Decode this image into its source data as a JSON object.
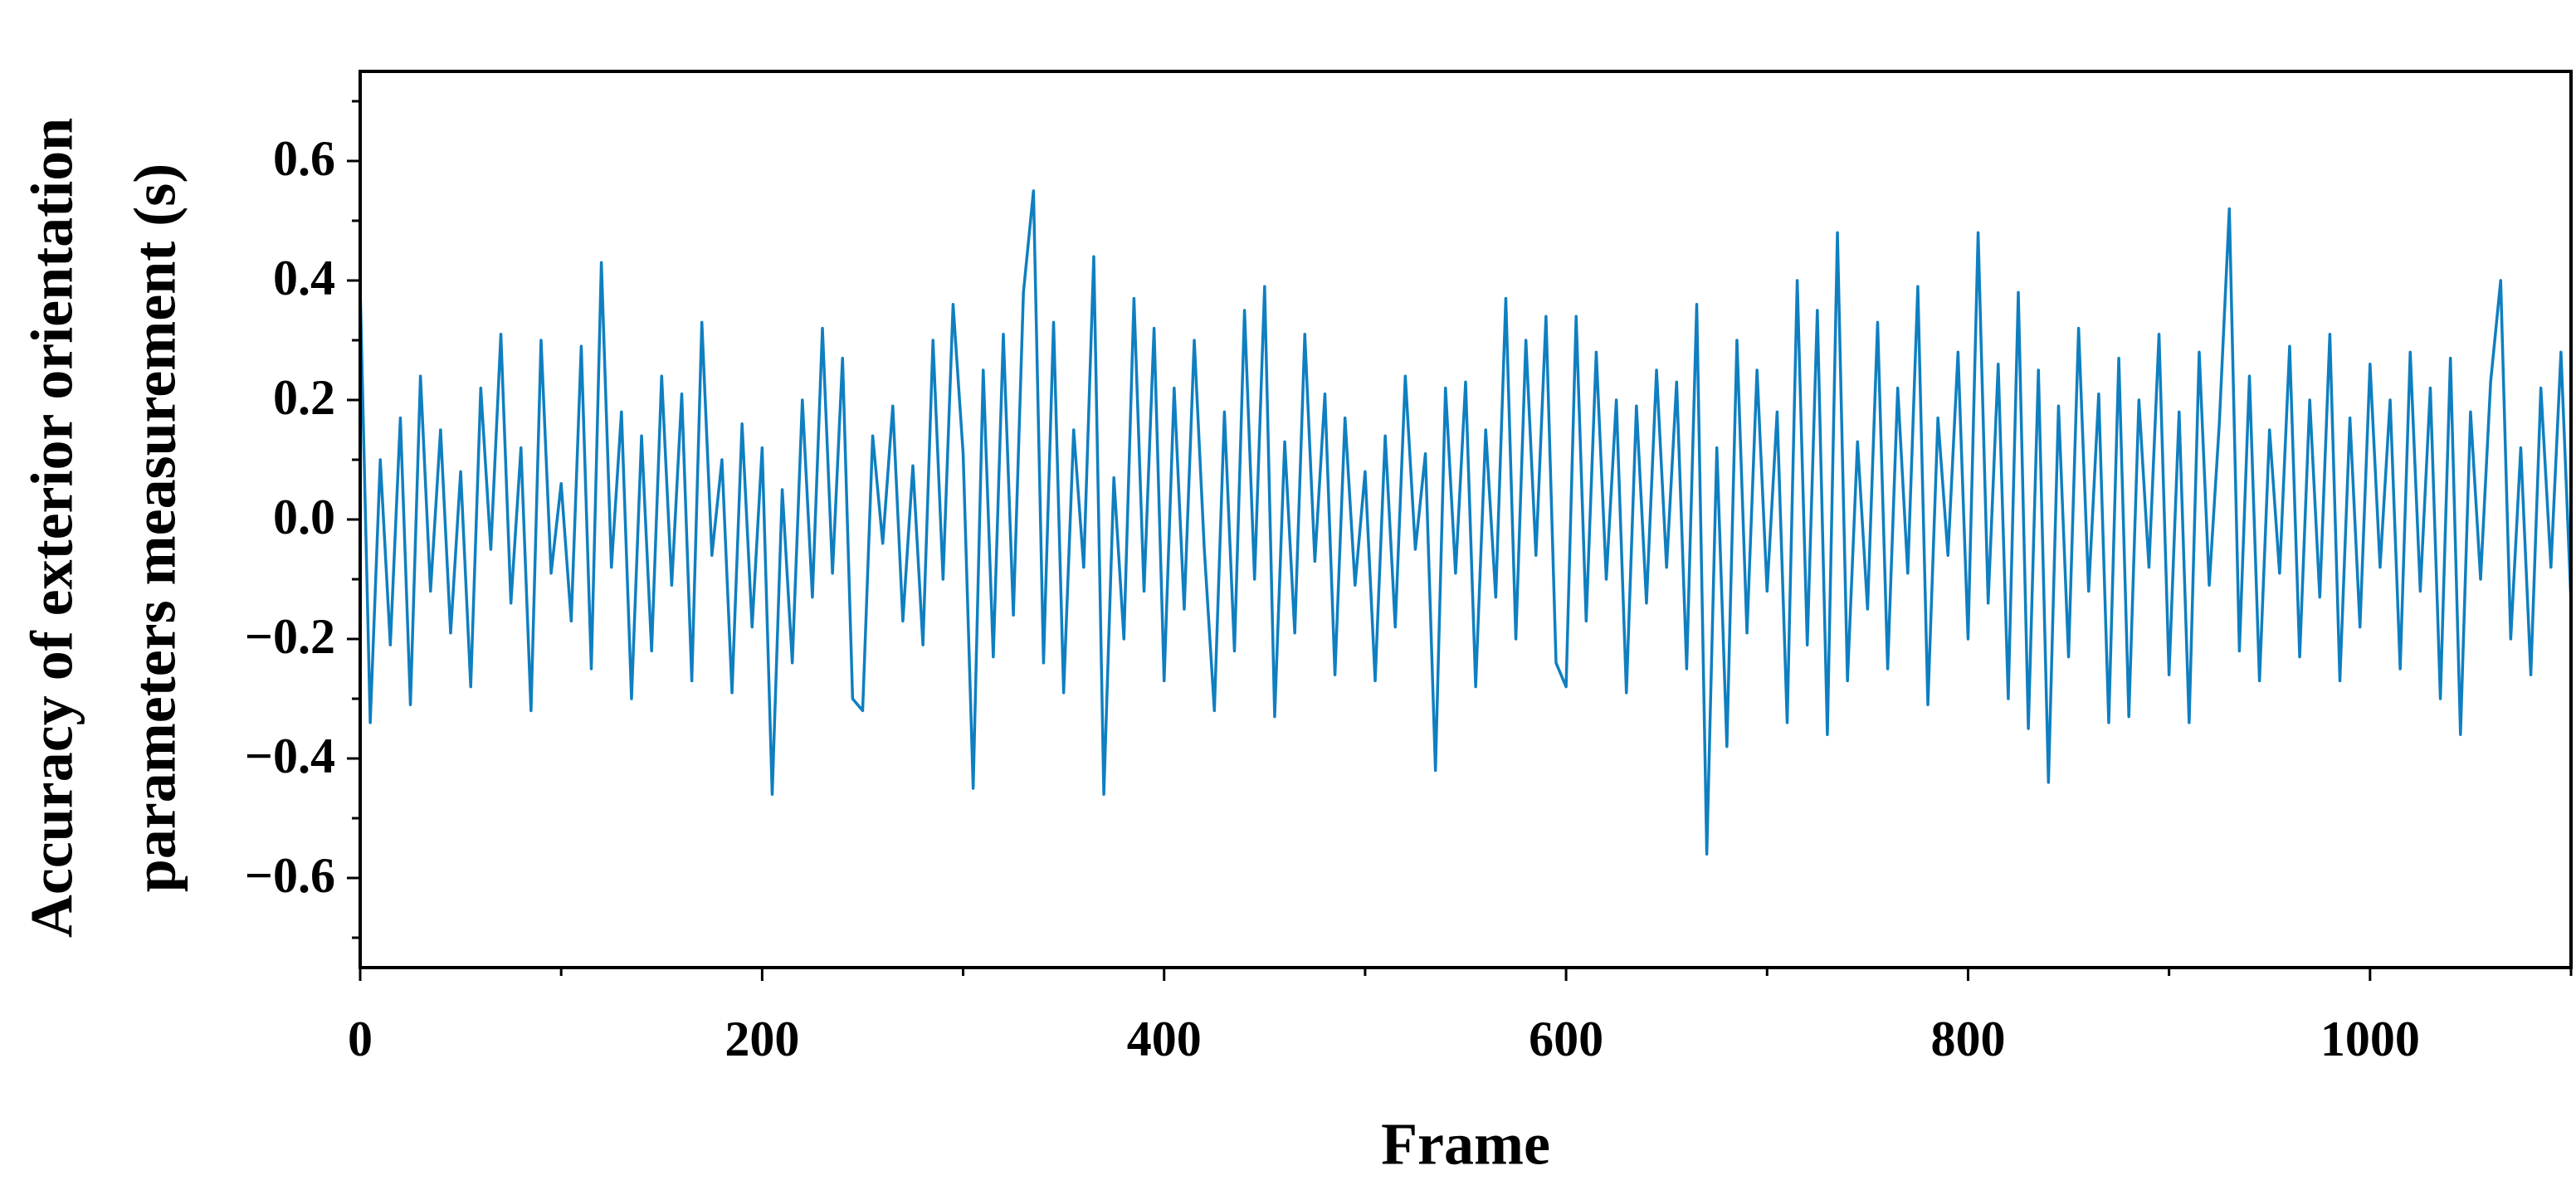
{
  "chart_data": {
    "type": "line",
    "xlabel": "Frame",
    "ylabel": [
      "Accuracy of exterior orientation",
      "parameters measurement (s)"
    ],
    "xlim": [
      0,
      1100
    ],
    "ylim": [
      -0.75,
      0.75
    ],
    "xticks": [
      0,
      200,
      400,
      600,
      800,
      1000
    ],
    "xminorticks": [
      100,
      300,
      500,
      700,
      900,
      1100
    ],
    "yticks": [
      {
        "value": -0.6,
        "label": "−0.6"
      },
      {
        "value": -0.4,
        "label": "−0.4"
      },
      {
        "value": -0.2,
        "label": "−0.2"
      },
      {
        "value": 0,
        "label": "0.0"
      },
      {
        "value": 0.2,
        "label": "0.2"
      },
      {
        "value": 0.4,
        "label": "0.4"
      },
      {
        "value": 0.6,
        "label": "0.6"
      }
    ],
    "yminorticks": [
      -0.7,
      -0.5,
      -0.3,
      -0.1,
      0.1,
      0.3,
      0.5,
      0.7
    ],
    "grid": false,
    "x": [
      0,
      5,
      10,
      15,
      20,
      25,
      30,
      35,
      40,
      45,
      50,
      55,
      60,
      65,
      70,
      75,
      80,
      85,
      90,
      95,
      100,
      105,
      110,
      115,
      120,
      125,
      130,
      135,
      140,
      145,
      150,
      155,
      160,
      165,
      170,
      175,
      180,
      185,
      190,
      195,
      200,
      205,
      210,
      215,
      220,
      225,
      230,
      235,
      240,
      245,
      250,
      255,
      260,
      265,
      270,
      275,
      280,
      285,
      290,
      295,
      300,
      305,
      310,
      315,
      320,
      325,
      330,
      335,
      340,
      345,
      350,
      355,
      360,
      365,
      370,
      375,
      380,
      385,
      390,
      395,
      400,
      405,
      410,
      415,
      420,
      425,
      430,
      435,
      440,
      445,
      450,
      455,
      460,
      465,
      470,
      475,
      480,
      485,
      490,
      495,
      500,
      505,
      510,
      515,
      520,
      525,
      530,
      535,
      540,
      545,
      550,
      555,
      560,
      565,
      570,
      575,
      580,
      585,
      590,
      595,
      600,
      605,
      610,
      615,
      620,
      625,
      630,
      635,
      640,
      645,
      650,
      655,
      660,
      665,
      670,
      675,
      680,
      685,
      690,
      695,
      700,
      705,
      710,
      715,
      720,
      725,
      730,
      735,
      740,
      745,
      750,
      755,
      760,
      765,
      770,
      775,
      780,
      785,
      790,
      795,
      800,
      805,
      810,
      815,
      820,
      825,
      830,
      835,
      840,
      845,
      850,
      855,
      860,
      865,
      870,
      875,
      880,
      885,
      890,
      895,
      900,
      905,
      910,
      915,
      920,
      925,
      930,
      935,
      940,
      945,
      950,
      955,
      960,
      965,
      970,
      975,
      980,
      985,
      990,
      995,
      1000,
      1005,
      1010,
      1015,
      1020,
      1025,
      1030,
      1035,
      1040,
      1045,
      1050,
      1055,
      1060,
      1065,
      1070,
      1075,
      1080,
      1085,
      1090,
      1095,
      1100
    ],
    "series": [
      {
        "color": "#0f7fc0",
        "values": [
          0.39,
          -0.34,
          0.1,
          -0.21,
          0.17,
          -0.31,
          0.24,
          -0.12,
          0.15,
          -0.19,
          0.08,
          -0.28,
          0.22,
          -0.05,
          0.31,
          -0.14,
          0.12,
          -0.32,
          0.3,
          -0.09,
          0.06,
          -0.17,
          0.29,
          -0.25,
          0.43,
          -0.08,
          0.18,
          -0.3,
          0.14,
          -0.22,
          0.24,
          -0.11,
          0.21,
          -0.27,
          0.33,
          -0.06,
          0.1,
          -0.29,
          0.16,
          -0.18,
          0.12,
          -0.46,
          0.05,
          -0.24,
          0.2,
          -0.13,
          0.32,
          -0.09,
          0.27,
          -0.3,
          -0.32,
          0.14,
          -0.04,
          0.19,
          -0.17,
          0.09,
          -0.21,
          0.3,
          -0.1,
          0.36,
          0.11,
          -0.45,
          0.25,
          -0.23,
          0.31,
          -0.16,
          0.38,
          0.55,
          -0.24,
          0.33,
          -0.29,
          0.15,
          -0.08,
          0.44,
          -0.46,
          0.07,
          -0.2,
          0.37,
          -0.12,
          0.32,
          -0.27,
          0.22,
          -0.15,
          0.3,
          -0.05,
          -0.32,
          0.18,
          -0.22,
          0.35,
          -0.1,
          0.39,
          -0.33,
          0.13,
          -0.19,
          0.31,
          -0.07,
          0.21,
          -0.26,
          0.17,
          -0.11,
          0.08,
          -0.27,
          0.14,
          -0.18,
          0.24,
          -0.05,
          0.11,
          -0.42,
          0.22,
          -0.09,
          0.23,
          -0.28,
          0.15,
          -0.13,
          0.37,
          -0.2,
          0.3,
          -0.06,
          0.34,
          -0.24,
          -0.28,
          0.34,
          -0.17,
          0.28,
          -0.1,
          0.2,
          -0.29,
          0.19,
          -0.14,
          0.25,
          -0.08,
          0.23,
          -0.25,
          0.36,
          -0.56,
          0.12,
          -0.38,
          0.3,
          -0.19,
          0.25,
          -0.12,
          0.18,
          -0.34,
          0.4,
          -0.21,
          0.35,
          -0.36,
          0.48,
          -0.27,
          0.13,
          -0.15,
          0.33,
          -0.25,
          0.22,
          -0.09,
          0.39,
          -0.31,
          0.17,
          -0.06,
          0.28,
          -0.2,
          0.48,
          -0.14,
          0.26,
          -0.3,
          0.38,
          -0.35,
          0.25,
          -0.44,
          0.19,
          -0.23,
          0.32,
          -0.12,
          0.21,
          -0.34,
          0.27,
          -0.33,
          0.2,
          -0.08,
          0.31,
          -0.26,
          0.18,
          -0.34,
          0.28,
          -0.11,
          0.16,
          0.52,
          -0.22,
          0.24,
          -0.27,
          0.15,
          -0.09,
          0.29,
          -0.23,
          0.2,
          -0.13,
          0.31,
          -0.27,
          0.17,
          -0.18,
          0.26,
          -0.08,
          0.2,
          -0.25,
          0.28,
          -0.12,
          0.22,
          -0.3,
          0.27,
          -0.36,
          0.18,
          -0.1,
          0.23,
          0.4,
          -0.2,
          0.12,
          -0.26,
          0.22,
          -0.08,
          0.28,
          -0.14
        ]
      }
    ]
  }
}
